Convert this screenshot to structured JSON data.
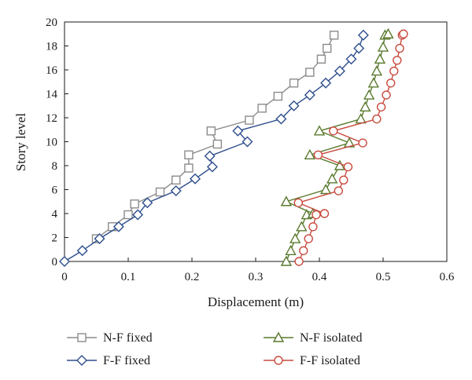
{
  "chart_data": {
    "type": "line",
    "xlabel": "Displacement (m)",
    "ylabel": "Story level",
    "xlim": [
      0,
      0.6
    ],
    "ylim": [
      0,
      20
    ],
    "xticks": [
      "0",
      "0.1",
      "0.2",
      "0.3",
      "0.4",
      "0.5",
      "0.6"
    ],
    "yticks": [
      "0",
      "2",
      "4",
      "6",
      "8",
      "10",
      "12",
      "14",
      "16",
      "18",
      "20"
    ],
    "grid": false,
    "legend": "bottom",
    "series": [
      {
        "name": "N-F fixed",
        "marker": "square",
        "color": "#8c8c8c",
        "points": [
          [
            0.05,
            1.9
          ],
          [
            0.075,
            2.9
          ],
          [
            0.1,
            3.9
          ],
          [
            0.11,
            4.8
          ],
          [
            0.15,
            5.8
          ],
          [
            0.175,
            6.8
          ],
          [
            0.195,
            7.8
          ],
          [
            0.195,
            8.9
          ],
          [
            0.24,
            9.8
          ],
          [
            0.23,
            10.9
          ],
          [
            0.29,
            11.8
          ],
          [
            0.31,
            12.8
          ],
          [
            0.335,
            13.8
          ],
          [
            0.36,
            14.9
          ],
          [
            0.385,
            15.8
          ],
          [
            0.403,
            16.9
          ],
          [
            0.412,
            17.8
          ],
          [
            0.423,
            18.9
          ]
        ]
      },
      {
        "name": "F-F fixed",
        "marker": "diamond",
        "color": "#2e4e8c",
        "points": [
          [
            0,
            0
          ],
          [
            0.028,
            0.9
          ],
          [
            0.055,
            1.9
          ],
          [
            0.085,
            2.9
          ],
          [
            0.115,
            3.9
          ],
          [
            0.13,
            4.9
          ],
          [
            0.175,
            5.9
          ],
          [
            0.205,
            6.9
          ],
          [
            0.232,
            7.9
          ],
          [
            0.228,
            8.8
          ],
          [
            0.287,
            10.0
          ],
          [
            0.272,
            10.9
          ],
          [
            0.34,
            11.9
          ],
          [
            0.36,
            13.0
          ],
          [
            0.385,
            13.9
          ],
          [
            0.41,
            14.9
          ],
          [
            0.432,
            15.9
          ],
          [
            0.45,
            16.9
          ],
          [
            0.462,
            17.8
          ],
          [
            0.469,
            18.9
          ]
        ]
      },
      {
        "name": "N-F isolated",
        "marker": "triangle",
        "color": "#5a7a2e",
        "points": [
          [
            0.348,
            0
          ],
          [
            0.355,
            0.9
          ],
          [
            0.362,
            1.9
          ],
          [
            0.372,
            2.9
          ],
          [
            0.38,
            3.9
          ],
          [
            0.39,
            4.0
          ],
          [
            0.348,
            5.0
          ],
          [
            0.41,
            6.0
          ],
          [
            0.42,
            6.9
          ],
          [
            0.432,
            8.0
          ],
          [
            0.385,
            8.9
          ],
          [
            0.447,
            9.9
          ],
          [
            0.4,
            10.9
          ],
          [
            0.465,
            11.9
          ],
          [
            0.472,
            12.9
          ],
          [
            0.478,
            13.9
          ],
          [
            0.485,
            14.9
          ],
          [
            0.49,
            15.9
          ],
          [
            0.495,
            16.9
          ],
          [
            0.5,
            17.9
          ],
          [
            0.503,
            18.9
          ],
          [
            0.508,
            19.0
          ]
        ]
      },
      {
        "name": "F-F isolated",
        "marker": "circle",
        "color": "#c84a3e",
        "points": [
          [
            0.368,
            0
          ],
          [
            0.375,
            0.9
          ],
          [
            0.383,
            1.9
          ],
          [
            0.39,
            2.9
          ],
          [
            0.395,
            3.9
          ],
          [
            0.408,
            4.0
          ],
          [
            0.367,
            4.9
          ],
          [
            0.43,
            5.9
          ],
          [
            0.438,
            6.8
          ],
          [
            0.445,
            7.9
          ],
          [
            0.398,
            8.9
          ],
          [
            0.468,
            9.9
          ],
          [
            0.422,
            10.9
          ],
          [
            0.49,
            11.9
          ],
          [
            0.497,
            12.9
          ],
          [
            0.505,
            13.9
          ],
          [
            0.512,
            14.9
          ],
          [
            0.517,
            15.9
          ],
          [
            0.522,
            16.8
          ],
          [
            0.526,
            17.8
          ],
          [
            0.53,
            18.9
          ],
          [
            0.532,
            19.0
          ]
        ]
      }
    ]
  }
}
